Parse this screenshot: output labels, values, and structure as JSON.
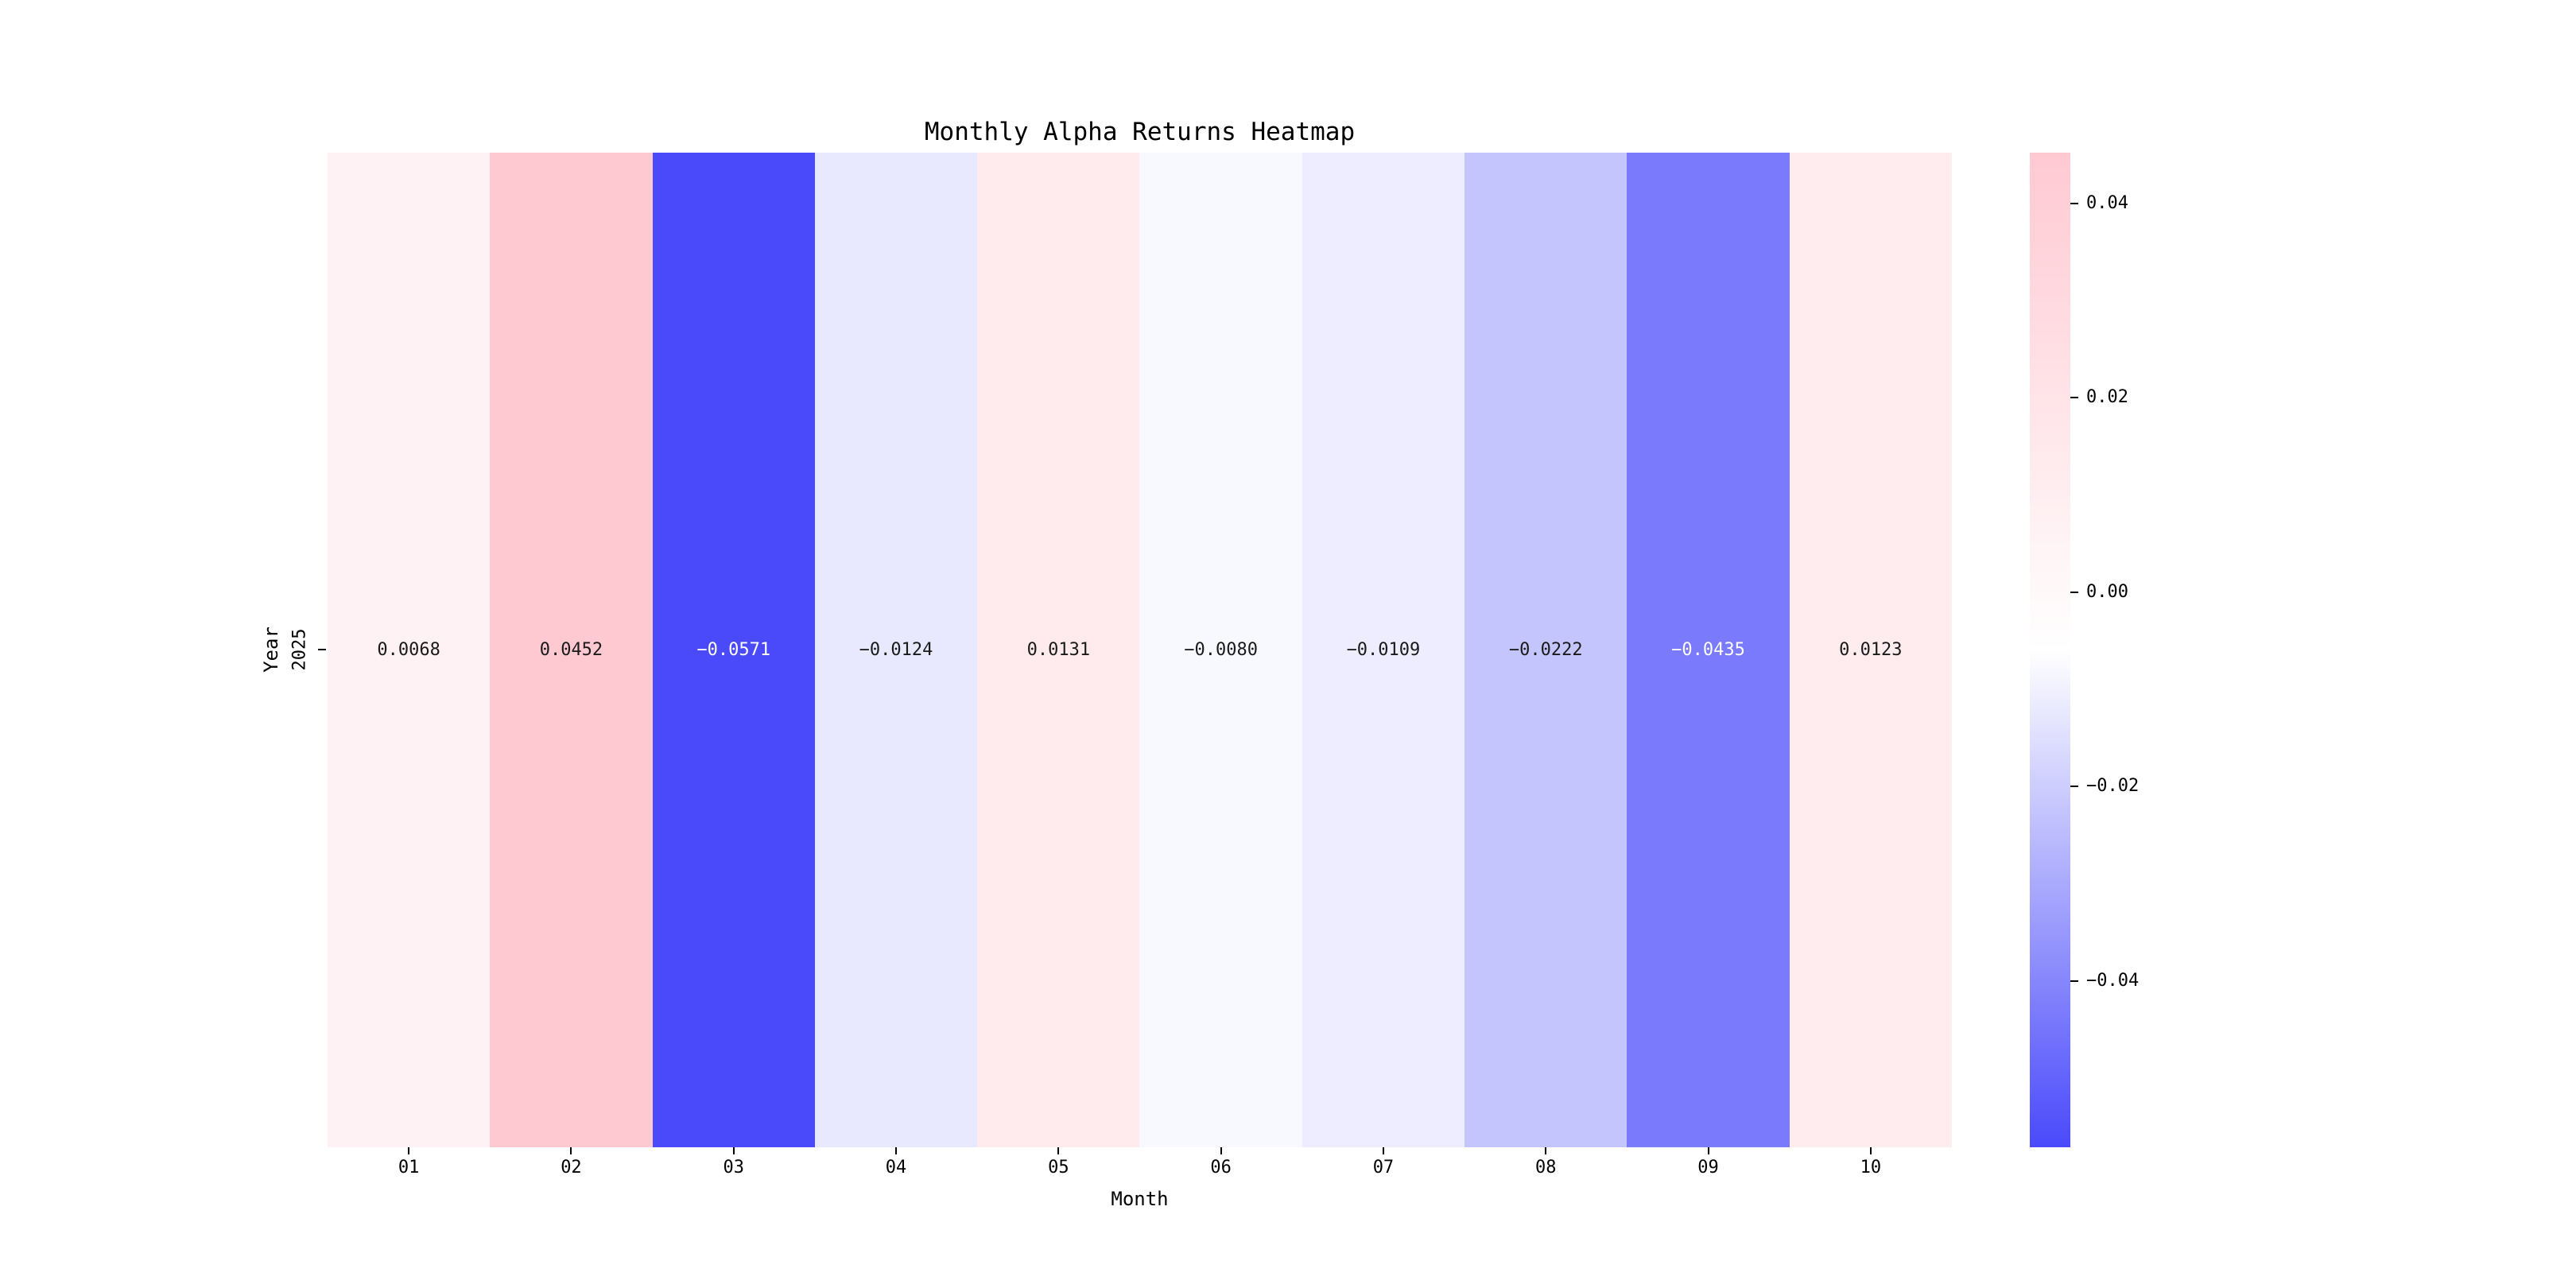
{
  "title": "Monthly Alpha Returns Heatmap",
  "chart_data": {
    "type": "heatmap",
    "title": "Monthly Alpha Returns Heatmap",
    "xlabel": "Month",
    "ylabel": "Year",
    "x_categories": [
      "01",
      "02",
      "03",
      "04",
      "05",
      "06",
      "07",
      "08",
      "09",
      "10"
    ],
    "y_categories": [
      "2025"
    ],
    "values": [
      [
        0.0068,
        0.0452,
        -0.0571,
        -0.0124,
        0.0131,
        -0.008,
        -0.0109,
        -0.0222,
        -0.0435,
        0.0123
      ]
    ],
    "annotations": [
      [
        "0.0068",
        "0.0452",
        "−0.0571",
        "−0.0124",
        "0.0131",
        "−0.0080",
        "−0.0109",
        "−0.0222",
        "−0.0435",
        "0.0123"
      ]
    ],
    "colormap": {
      "negative_end": "#4A4AFB",
      "center": "#FFFFFF",
      "positive_end": "#FFC9D2",
      "vmin": -0.0571,
      "vmax": 0.0452
    },
    "colorbar": {
      "tick_labels": [
        "0.04",
        "0.02",
        "0.00",
        "−0.02",
        "−0.04"
      ],
      "tick_values": [
        0.04,
        0.02,
        0.0,
        -0.02,
        -0.04
      ],
      "position": "right"
    },
    "annot_text_dark": "#1a1a1a",
    "annot_text_light": "#ffffff",
    "axis_text_color": "#000000",
    "grid": false,
    "legend": false
  }
}
